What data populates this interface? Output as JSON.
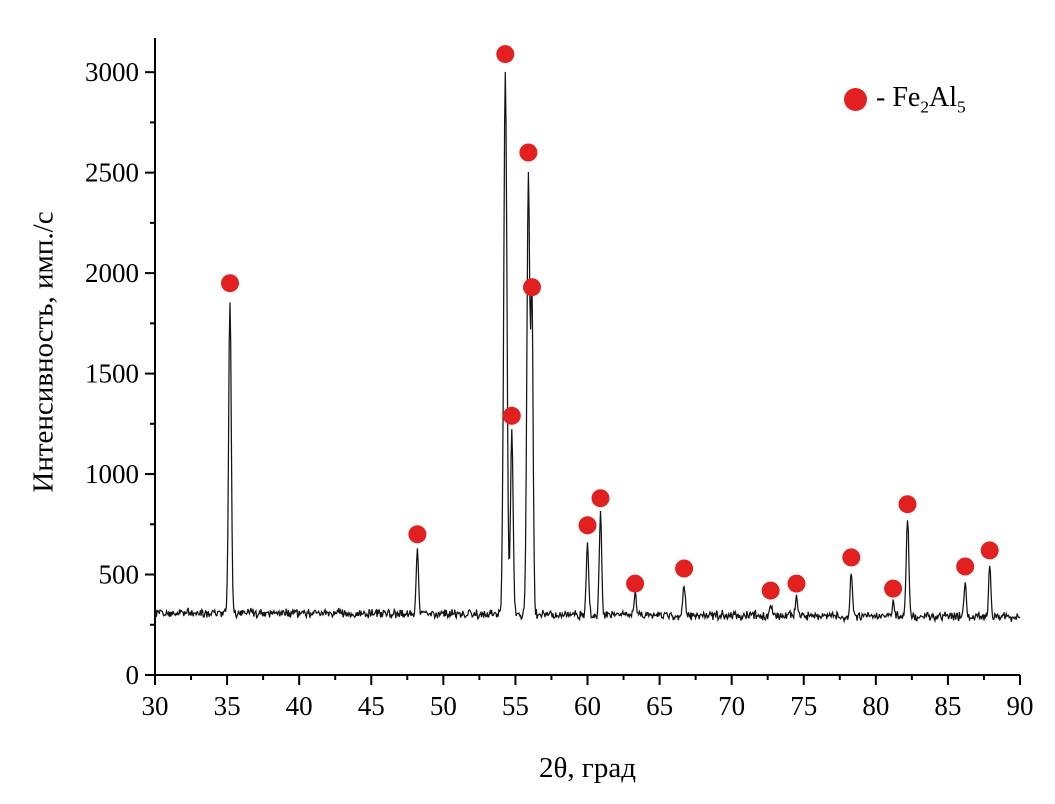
{
  "chart_data": {
    "type": "line",
    "title": "",
    "xlabel": "2θ, град",
    "ylabel": "Интенсивность, имп./с",
    "xlim": [
      30,
      90
    ],
    "ylim": [
      0,
      3170
    ],
    "xticks": [
      30,
      35,
      40,
      45,
      50,
      55,
      60,
      65,
      70,
      75,
      80,
      85,
      90
    ],
    "yticks": [
      0,
      500,
      1000,
      1500,
      2000,
      2500,
      3000
    ],
    "x_minor_step": 2.5,
    "y_minor_step": 250,
    "grid": false,
    "legend_position": "top-right",
    "legend": {
      "marker_icon": "red-dot-icon",
      "prefix": "- Fe",
      "sub1": "2",
      "mid": "Al",
      "sub2": "5"
    },
    "line_color": "#141414",
    "axis_color": "#000000",
    "marker_color": "#e32020",
    "marker_radius": 9,
    "baseline": {
      "start": 312,
      "slope_per_deg": -0.38
    },
    "noise_amplitude": 27,
    "noise_seed": 12,
    "sample_step": 0.05,
    "peaks": [
      [
        35.2,
        1870,
        0.09
      ],
      [
        48.2,
        625,
        0.08
      ],
      [
        54.3,
        3010,
        0.11
      ],
      [
        54.75,
        1215,
        0.09
      ],
      [
        55.9,
        2500,
        0.1
      ],
      [
        56.15,
        1850,
        0.08
      ],
      [
        60.0,
        670,
        0.08
      ],
      [
        60.9,
        810,
        0.08
      ],
      [
        63.3,
        400,
        0.08
      ],
      [
        66.7,
        465,
        0.08
      ],
      [
        72.7,
        360,
        0.08
      ],
      [
        74.5,
        395,
        0.08
      ],
      [
        78.3,
        515,
        0.08
      ],
      [
        81.2,
        375,
        0.07
      ],
      [
        82.2,
        775,
        0.09
      ],
      [
        86.2,
        470,
        0.08
      ],
      [
        87.9,
        550,
        0.08
      ]
    ],
    "markers": [
      [
        35.2,
        1950
      ],
      [
        48.2,
        700
      ],
      [
        54.3,
        3090
      ],
      [
        54.75,
        1290
      ],
      [
        55.9,
        2600
      ],
      [
        56.15,
        1930
      ],
      [
        60.0,
        745
      ],
      [
        60.9,
        880
      ],
      [
        63.3,
        455
      ],
      [
        66.7,
        530
      ],
      [
        72.7,
        420
      ],
      [
        74.5,
        455
      ],
      [
        78.3,
        585
      ],
      [
        81.2,
        430
      ],
      [
        82.2,
        850
      ],
      [
        86.2,
        540
      ],
      [
        87.9,
        620
      ]
    ]
  }
}
